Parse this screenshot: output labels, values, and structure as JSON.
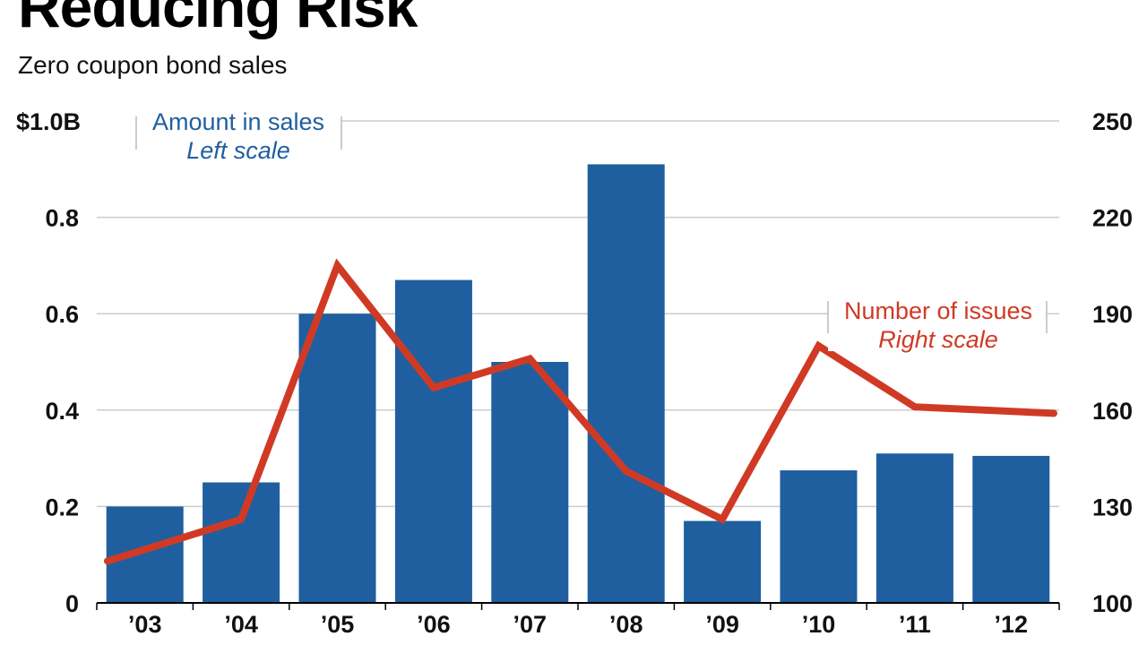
{
  "title": "Reducing Risk",
  "subtitle": "Zero coupon bond sales",
  "colors": {
    "bar": "#1f5fa0",
    "line": "#d03a25",
    "grid": "#cccccc",
    "axis": "#000000"
  },
  "chart_data": {
    "type": "bar",
    "categories": [
      "’03",
      "’04",
      "’05",
      "’06",
      "’07",
      "’08",
      "’09",
      "’10",
      "’11",
      "’12"
    ],
    "series": [
      {
        "name": "Amount in sales",
        "scale_label": "Left scale",
        "axis": "left",
        "type": "bar",
        "values": [
          0.2,
          0.25,
          0.6,
          0.67,
          0.5,
          0.91,
          0.17,
          0.275,
          0.31,
          0.305
        ]
      },
      {
        "name": "Number of issues",
        "scale_label": "Right scale",
        "axis": "right",
        "type": "line",
        "values": [
          113,
          126,
          205,
          167,
          176,
          141,
          126,
          180,
          161,
          159
        ]
      }
    ],
    "left_axis": {
      "ylim": [
        0,
        1.0
      ],
      "ticks": [
        0,
        0.2,
        0.4,
        0.6,
        0.8,
        1.0
      ],
      "tick_labels": [
        "0",
        "0.2",
        "0.4",
        "0.6",
        "0.8",
        "$1.0B"
      ]
    },
    "right_axis": {
      "ylim": [
        100,
        250
      ],
      "ticks": [
        100,
        130,
        160,
        190,
        220,
        250
      ],
      "tick_labels": [
        "100",
        "130",
        "160",
        "190",
        "220",
        "250"
      ]
    },
    "grid": true,
    "legend": [
      {
        "label": "Amount in sales",
        "sublabel": "Left scale",
        "placement": "top-left"
      },
      {
        "label": "Number of issues",
        "sublabel": "Right scale",
        "placement": "middle-right"
      }
    ]
  }
}
